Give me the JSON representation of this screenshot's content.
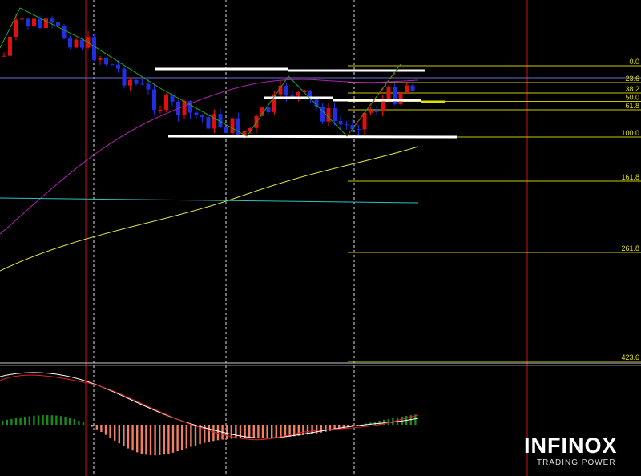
{
  "fibonacci": {
    "levels": [
      {
        "value": 0,
        "label": "0.0"
      },
      23.6,
      38.2,
      {
        "value": 50,
        "label": "50.0"
      },
      61.8,
      {
        "value": 100,
        "label": "100.0"
      },
      161.8,
      261.8,
      423.6
    ]
  },
  "logo": {
    "name": "INFINOX",
    "tagline": "TRADING POWER"
  }
}
